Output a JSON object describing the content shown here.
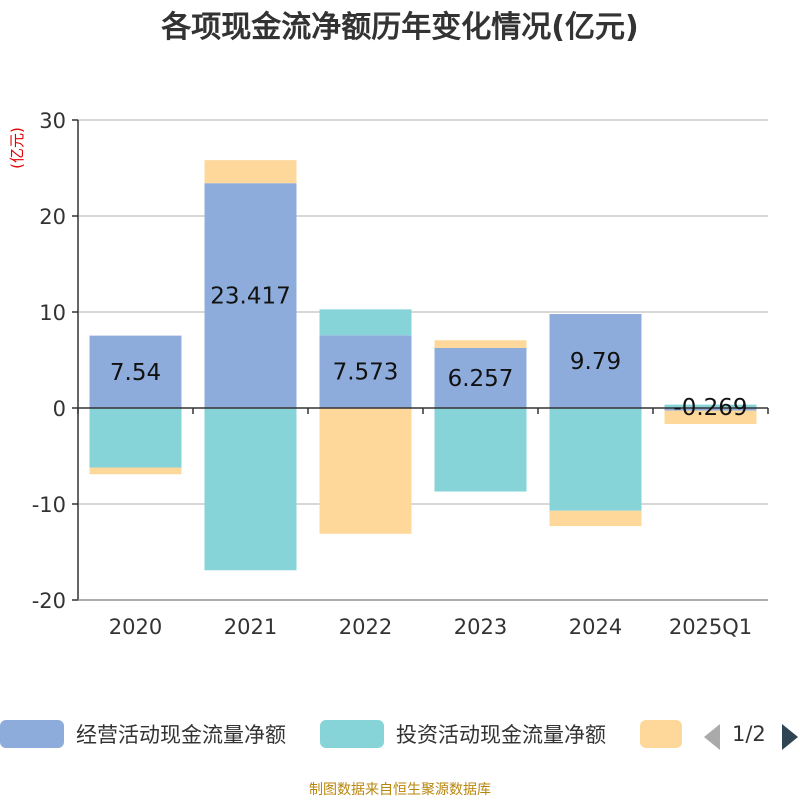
{
  "chart_data": {
    "type": "bar",
    "stacked": true,
    "title": "各项现金流净额历年变化情况(亿元)",
    "ylabel": "(亿元)",
    "categories": [
      "2020",
      "2021",
      "2022",
      "2023",
      "2024",
      "2025Q1"
    ],
    "ylim": [
      -20,
      30
    ],
    "yticks": [
      -20,
      -10,
      0,
      10,
      20,
      30
    ],
    "grid": true,
    "series": [
      {
        "name": "经营活动现金流量净额",
        "color": "#8eacdb",
        "values": [
          7.54,
          23.417,
          7.573,
          6.257,
          9.79,
          -0.269
        ],
        "labels": [
          "7.54",
          "23.417",
          "7.573",
          "6.257",
          "9.79",
          "-0.269"
        ]
      },
      {
        "name": "投资活动现金流量净额",
        "color": "#86d4d8",
        "values": [
          -6.2,
          -16.9,
          2.7,
          -8.7,
          -10.7,
          0.35
        ]
      },
      {
        "name": "",
        "color": "#fdd89a",
        "values": [
          -0.7,
          2.4,
          -13.1,
          0.8,
          -1.6,
          -1.4
        ]
      }
    ],
    "legend": {
      "position": "bottom",
      "page": "1/2"
    }
  },
  "footer": "制图数据来自恒生聚源数据库"
}
